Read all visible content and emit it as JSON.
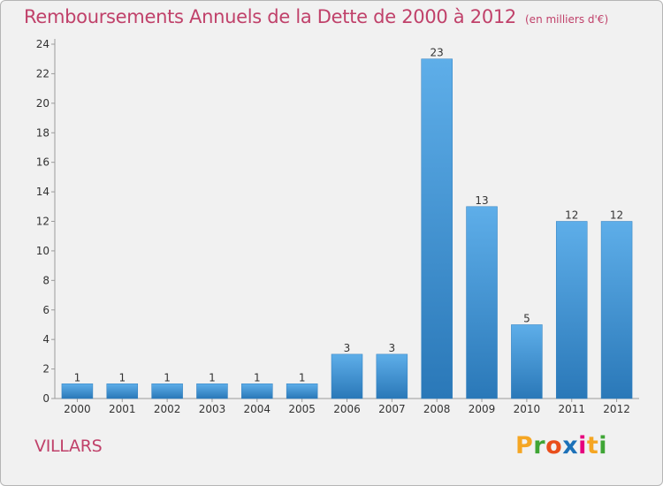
{
  "header": {
    "title": "Remboursements Annuels de la Dette de 2000 à 2012",
    "subtitle": "(en milliers d'€)"
  },
  "footer": {
    "town": "VILLARS",
    "brand": "Proxiti"
  },
  "colors": {
    "title": "#c0416a",
    "bar_light": "#5eaee9",
    "bar_dark": "#2a78b8",
    "background": "#f1f1f1",
    "logo_letters": [
      "#f5a623",
      "#3fa535",
      "#e94e1b",
      "#1d71b8",
      "#e6007e",
      "#f5a623",
      "#3fa535"
    ]
  },
  "chart_data": {
    "type": "bar",
    "title": "Remboursements Annuels de la Dette de 2000 à 2012",
    "subtitle": "(en milliers d'€)",
    "xlabel": "",
    "ylabel": "",
    "categories": [
      "2000",
      "2001",
      "2002",
      "2003",
      "2004",
      "2005",
      "2006",
      "2007",
      "2008",
      "2009",
      "2010",
      "2011",
      "2012"
    ],
    "values": [
      1,
      1,
      1,
      1,
      1,
      1,
      3,
      3,
      23,
      13,
      5,
      12,
      12
    ],
    "data_labels": [
      "1",
      "1",
      "1",
      "1",
      "1",
      "1",
      "3",
      "3",
      "23",
      "13",
      "5",
      "12",
      "12"
    ],
    "ylim": [
      0,
      24
    ],
    "yticks": [
      0,
      2,
      4,
      6,
      8,
      10,
      12,
      14,
      16,
      18,
      20,
      22,
      24
    ],
    "ytick_labels": [
      "0",
      "2",
      "4",
      "6",
      "8",
      "10",
      "12",
      "14",
      "16",
      "18",
      "20",
      "22",
      "24"
    ],
    "grid": false,
    "legend": "none"
  }
}
